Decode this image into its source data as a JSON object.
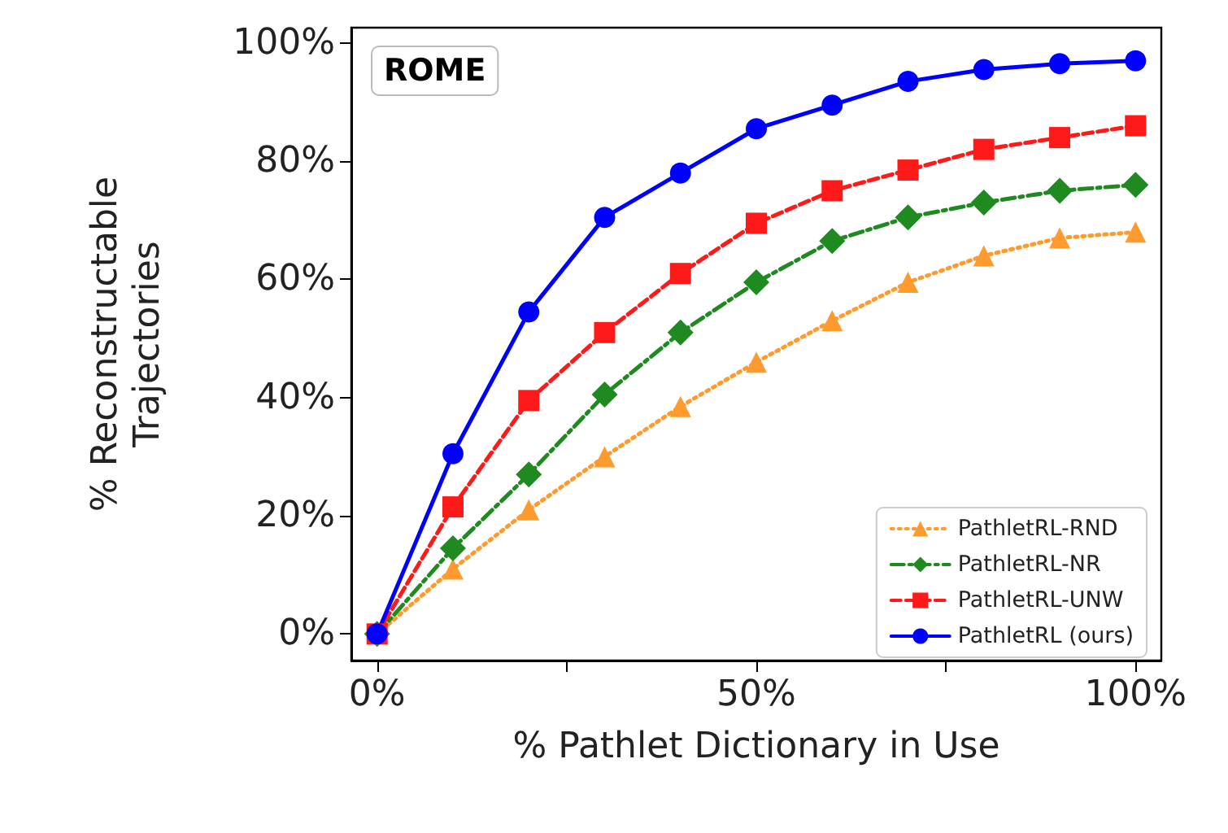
{
  "chart_data": {
    "type": "line",
    "xlabel": "% Pathlet Dictionary in Use",
    "ylabel": "% Reconstructable\nTrajectories",
    "annotations": [
      "ROME"
    ],
    "x": [
      0,
      10,
      20,
      30,
      40,
      50,
      60,
      70,
      80,
      90,
      100
    ],
    "xlim": [
      -3.4,
      103.4
    ],
    "ylim": [
      -4.5,
      102.6
    ],
    "xticks": [
      {
        "value": 0,
        "label": "0%"
      },
      {
        "value": 25,
        "label": null
      },
      {
        "value": 50,
        "label": "50%"
      },
      {
        "value": 75,
        "label": null
      },
      {
        "value": 100,
        "label": "100%"
      }
    ],
    "yticks": [
      {
        "value": 0,
        "label": "0%"
      },
      {
        "value": 20,
        "label": "20%"
      },
      {
        "value": 40,
        "label": "40%"
      },
      {
        "value": 60,
        "label": "60%"
      },
      {
        "value": 80,
        "label": "80%"
      },
      {
        "value": 100,
        "label": "100%"
      }
    ],
    "grid": false,
    "legend": "bottom right",
    "series": [
      {
        "name": "PathletRL-RND",
        "color": "#ff9a2e",
        "marker": "triangle",
        "line_style": "dotted",
        "values": [
          0,
          11,
          21,
          30,
          38.5,
          46,
          53,
          59.5,
          64,
          67,
          68
        ]
      },
      {
        "name": "PathletRL-NR",
        "color": "#1f8a1f",
        "marker": "diamond",
        "line_style": "dashdot",
        "values": [
          0,
          14.5,
          27,
          40.5,
          51,
          59.5,
          66.5,
          70.5,
          73,
          75,
          76
        ]
      },
      {
        "name": "PathletRL-UNW",
        "color": "#ff1a1a",
        "marker": "square",
        "line_style": "dashed",
        "values": [
          0,
          21.5,
          39.5,
          51,
          61,
          69.5,
          75,
          78.5,
          82,
          84,
          86
        ]
      },
      {
        "name": "PathletRL (ours)",
        "color": "#0000ff",
        "marker": "circle",
        "line_style": "solid",
        "values": [
          0,
          30.5,
          54.5,
          70.5,
          78,
          85.5,
          89.5,
          93.5,
          95.5,
          96.5,
          97
        ]
      }
    ]
  }
}
